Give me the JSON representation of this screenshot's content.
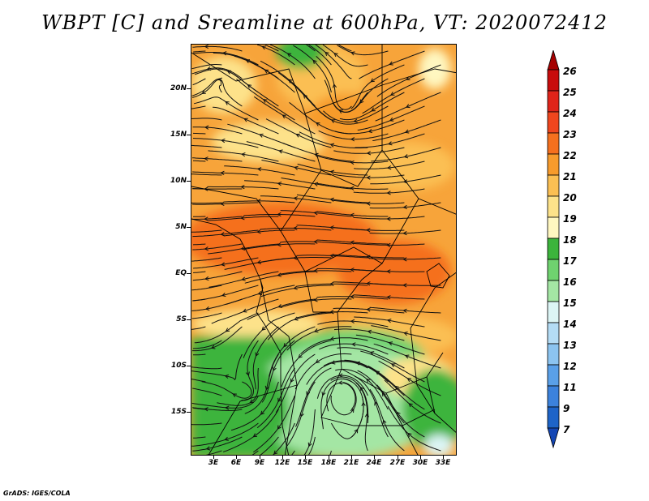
{
  "title": "WBPT [C] and Sreamline at 600hPa, VT: 2020072412",
  "footer": "GrADS: IGES/COLA",
  "map": {
    "lat_labels": [
      "20N",
      "15N",
      "10N",
      "5N",
      "EQ",
      "5S",
      "10S",
      "15S"
    ],
    "lon_labels": [
      "3E",
      "6E",
      "9E",
      "12E",
      "15E",
      "18E",
      "21E",
      "24E",
      "27E",
      "30E",
      "33E"
    ],
    "fields": {
      "variable": "Wet-bulb potential temperature",
      "units": "C",
      "streamline_level": "600hPa"
    }
  },
  "colorbar": {
    "levels": [
      "26",
      "25",
      "24",
      "23",
      "22",
      "21",
      "20",
      "19",
      "18",
      "17",
      "16",
      "15",
      "14",
      "13",
      "12",
      "11",
      "9",
      "7"
    ],
    "colors": [
      "#a50000",
      "#c80c0c",
      "#e0241a",
      "#f0461e",
      "#f5701e",
      "#f79b2c",
      "#fbbf53",
      "#fde28a",
      "#fff7c0",
      "#3cb43c",
      "#6fd26f",
      "#a4e6a4",
      "#dcf5f5",
      "#b4dcf5",
      "#8cc4f0",
      "#5aa0e8",
      "#3c82dc",
      "#1e64c8",
      "#1446b4"
    ]
  }
}
